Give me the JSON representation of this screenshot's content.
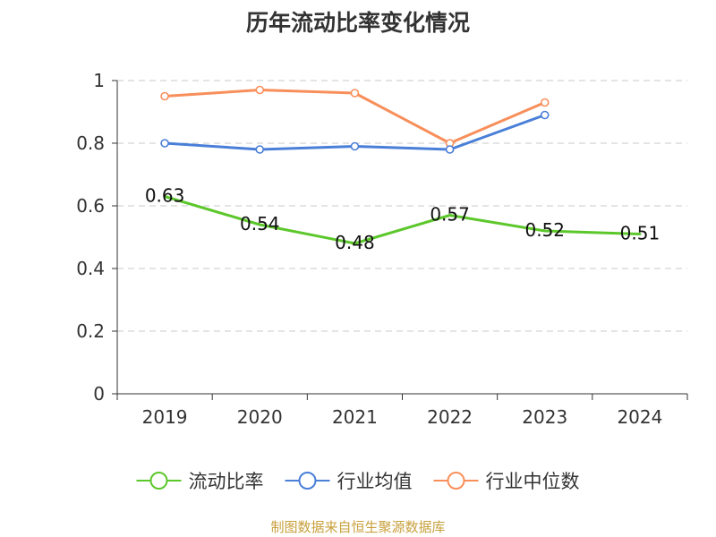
{
  "chart_data": {
    "type": "line",
    "title": "历年流动比率变化情况",
    "categories": [
      "2019",
      "2020",
      "2021",
      "2022",
      "2023",
      "2024"
    ],
    "ylim": [
      0,
      1
    ],
    "yticks": [
      0,
      0.2,
      0.4,
      0.6,
      0.8,
      1
    ],
    "ytick_labels": [
      "0",
      "0.2",
      "0.4",
      "0.6",
      "0.8",
      "1"
    ],
    "grid": true,
    "legend_position": "bottom",
    "series": [
      {
        "name": "流动比率",
        "color": "#5cc72b",
        "values": [
          0.63,
          0.54,
          0.48,
          0.57,
          0.52,
          0.51
        ],
        "data_labels": [
          "0.63",
          "0.54",
          "0.48",
          "0.57",
          "0.52",
          "0.51"
        ],
        "markers": false
      },
      {
        "name": "行业均值",
        "color": "#4a7fd8",
        "values": [
          0.8,
          0.78,
          0.79,
          0.78,
          0.89,
          null
        ],
        "markers": true
      },
      {
        "name": "行业中位数",
        "color": "#f88f5b",
        "values": [
          0.95,
          0.97,
          0.96,
          0.8,
          0.93,
          null
        ],
        "markers": true
      }
    ]
  },
  "footer": {
    "source": "制图数据来自恒生聚源数据库"
  }
}
